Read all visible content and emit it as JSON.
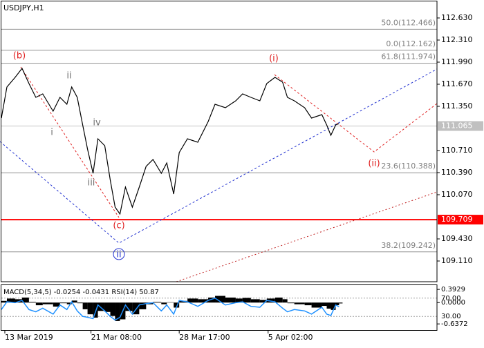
{
  "chart_data": [
    {
      "type": "line",
      "title": "USDJPY,H1",
      "x": [
        0,
        8,
        20,
        30,
        40,
        50,
        60,
        75,
        85,
        95,
        102,
        110,
        118,
        125,
        133,
        140,
        150,
        158,
        165,
        172,
        180,
        190,
        200,
        210,
        220,
        232,
        240,
        250,
        258,
        270,
        285,
        300,
        310,
        325,
        340,
        350,
        362,
        375,
        385,
        397,
        408,
        415,
        425,
        440,
        450,
        465,
        472,
        478,
        485,
        490
      ],
      "values": [
        111.18,
        111.63,
        111.77,
        111.9,
        111.68,
        111.48,
        111.53,
        111.28,
        111.48,
        111.38,
        111.63,
        111.48,
        111.08,
        110.73,
        110.38,
        110.88,
        110.78,
        110.28,
        109.89,
        109.79,
        110.18,
        109.89,
        110.18,
        110.48,
        110.58,
        110.38,
        110.53,
        110.08,
        110.68,
        110.88,
        110.83,
        111.13,
        111.38,
        111.33,
        111.43,
        111.53,
        111.48,
        111.43,
        111.68,
        111.77,
        111.7,
        111.48,
        111.43,
        111.33,
        111.18,
        111.23,
        111.08,
        110.93,
        111.08,
        111.1
      ],
      "color": "#000000",
      "xlim": [
        0,
        632
      ],
      "xticks": [
        {
          "value": 5,
          "label": "13 Mar 2019"
        },
        {
          "value": 130,
          "label": "21 Mar 08:00"
        },
        {
          "value": 258,
          "label": "28 Mar 17:00"
        },
        {
          "value": 387,
          "label": "5 Apr 02:00"
        }
      ],
      "ylim": [
        108.81,
        112.87
      ],
      "yticks": [
        {
          "value": 112.63,
          "label": "112.630"
        },
        {
          "value": 112.31,
          "label": "112.310"
        },
        {
          "value": 111.99,
          "label": "111.990"
        },
        {
          "value": 111.67,
          "label": "111.670"
        },
        {
          "value": 111.35,
          "label": "111.350"
        },
        {
          "value": 110.71,
          "label": "110.710"
        },
        {
          "value": 110.39,
          "label": "110.390"
        },
        {
          "value": 110.07,
          "label": "110.070"
        },
        {
          "value": 109.43,
          "label": "109.430"
        },
        {
          "value": 109.11,
          "label": "109.110"
        }
      ],
      "price_levels": [
        {
          "value": 111.065,
          "label": "111.065",
          "color": "#c0c0c0"
        },
        {
          "value": 109.709,
          "label": "109.709",
          "color": "#ff0000"
        }
      ],
      "fib_levels": [
        {
          "value": 112.466,
          "label": "50.0(112.466)"
        },
        {
          "value": 112.162,
          "label": "0.0(112.162)"
        },
        {
          "value": 111.974,
          "label": "61.8(111.974)"
        },
        {
          "value": 110.388,
          "label": "23.6(110.388)"
        },
        {
          "value": 109.242,
          "label": "38.2(109.242)"
        }
      ],
      "wave_labels": [
        "(b)",
        "ii",
        "i",
        "iv",
        "iii",
        "(c)",
        "ii",
        "(i)",
        "(ii)"
      ]
    },
    {
      "type": "bar",
      "title": "MACD(5,34,5) -0.0254 -0.0431 RSI(14) 50.87",
      "values": [
        0.05,
        0.12,
        0.1,
        0.15,
        0.02,
        -0.08,
        -0.05,
        -0.12,
        -0.02,
        -0.05,
        0.06,
        -0.02,
        -0.2,
        -0.35,
        -0.45,
        -0.25,
        -0.28,
        -0.4,
        -0.55,
        -0.5,
        -0.25,
        -0.35,
        -0.2,
        -0.05,
        0.02,
        -0.05,
        0.01,
        -0.15,
        0.05,
        0.12,
        0.1,
        0.15,
        0.2,
        0.15,
        0.12,
        0.14,
        0.1,
        0.08,
        0.12,
        0.15,
        0.1,
        -0.02,
        -0.05,
        -0.08,
        -0.15,
        -0.1,
        -0.18,
        -0.22,
        -0.08,
        -0.0254
      ],
      "color": "#000000",
      "ylim": [
        -0.82,
        0.54
      ],
      "yticks": [
        0.3929,
        {
          "value": 0,
          "label": "0.0000"
        },
        -0.6372
      ],
      "series": [
        {
          "axis": "y2",
          "color": "#1e90ff",
          "values": [
            45,
            62,
            60,
            65,
            45,
            40,
            48,
            35,
            55,
            45,
            62,
            42,
            30,
            28,
            25,
            55,
            42,
            30,
            22,
            28,
            55,
            35,
            55,
            58,
            60,
            42,
            55,
            35,
            65,
            62,
            52,
            65,
            70,
            55,
            60,
            62,
            52,
            50,
            65,
            62,
            48,
            40,
            45,
            42,
            35,
            50,
            35,
            32,
            55,
            50.87
          ]
        }
      ],
      "y2lim": [
        0,
        100
      ],
      "y2ticks": [
        {
          "value": 70,
          "label": "70.00"
        },
        {
          "value": 30,
          "label": "30.00"
        }
      ]
    }
  ]
}
